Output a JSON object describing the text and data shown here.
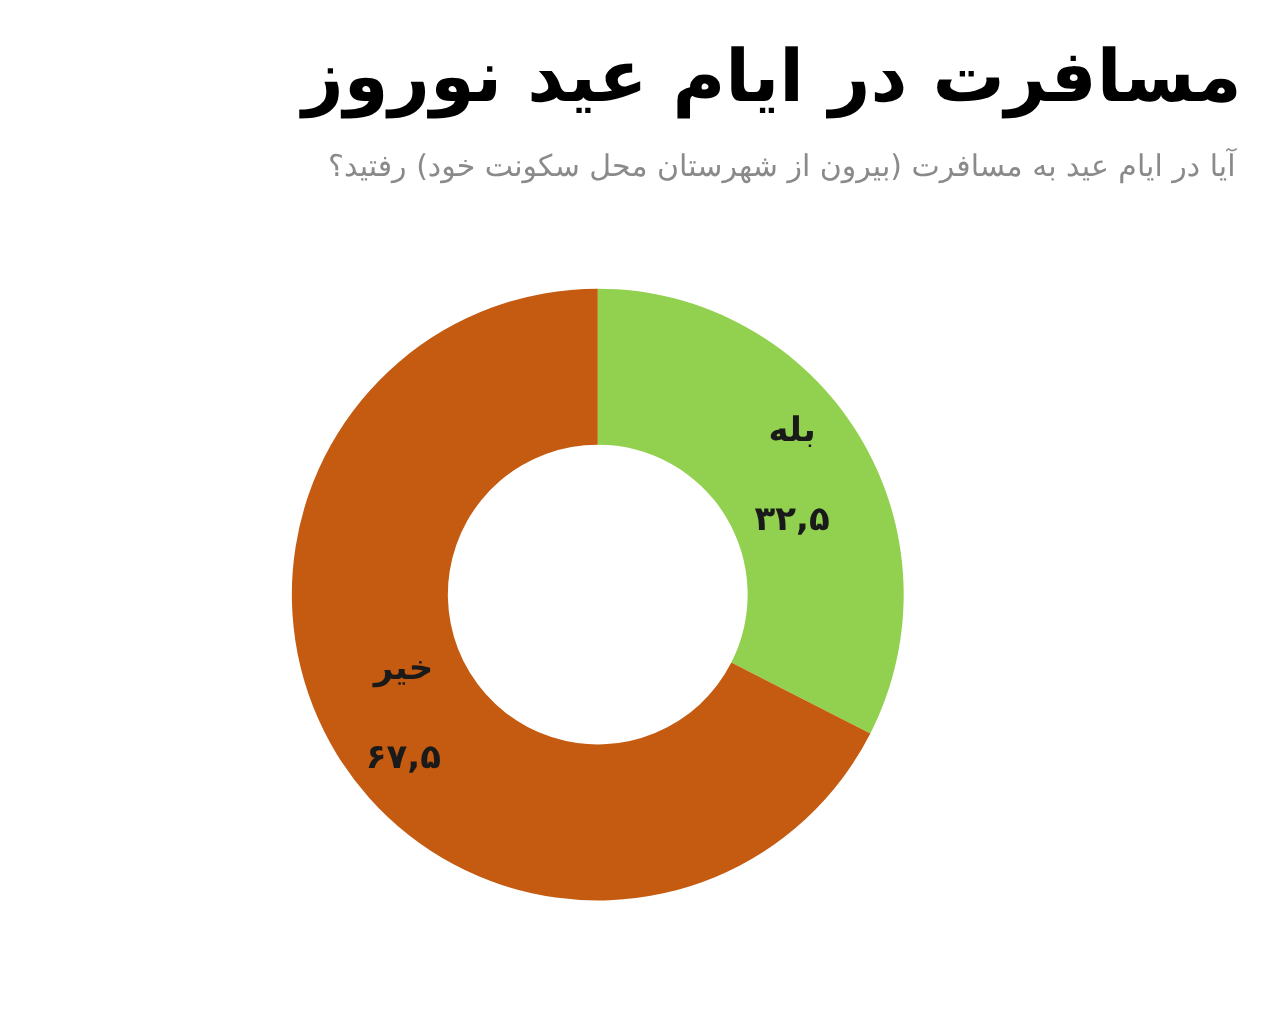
{
  "chart_data": {
    "type": "donut",
    "title": "مسافرت در ایام عید نوروز",
    "subtitle": "آیا در ایام عید به مسافرت (بیرون از شهرستان محل سکونت خود) رفتید؟",
    "categories": [
      "بله",
      "خیر"
    ],
    "values": [
      32.5,
      67.5
    ],
    "colors": [
      "#92d050",
      "#c55a11"
    ],
    "value_labels": [
      "۳۲,۵",
      "۶۷,۵"
    ],
    "legend": false
  }
}
